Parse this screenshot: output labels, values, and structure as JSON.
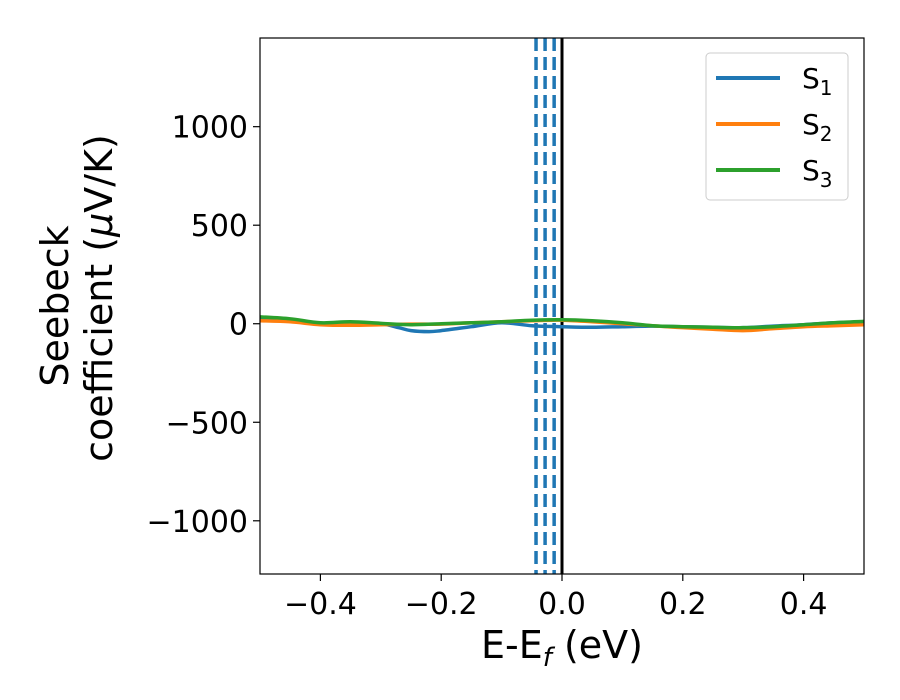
{
  "chart_data": {
    "type": "line",
    "xlabel_main": "E-E",
    "xlabel_sub": "f",
    "xlabel_unit": " (eV)",
    "ylabel_line1": "Seebeck",
    "ylabel_line2_prefix": "coefficient  (",
    "ylabel_mu": "μ",
    "ylabel_line2_suffix": "V/K)",
    "xlim": [
      -0.5,
      0.5
    ],
    "ylim": [
      -1270,
      1450
    ],
    "xticks": [
      {
        "value": -0.4,
        "label": "−0.4"
      },
      {
        "value": -0.2,
        "label": "−0.2"
      },
      {
        "value": 0.0,
        "label": "0.0"
      },
      {
        "value": 0.2,
        "label": "0.2"
      },
      {
        "value": 0.4,
        "label": "0.4"
      }
    ],
    "yticks": [
      {
        "value": -1000,
        "label": "−1000"
      },
      {
        "value": -500,
        "label": "−500"
      },
      {
        "value": 0,
        "label": "0"
      },
      {
        "value": 500,
        "label": "500"
      },
      {
        "value": 1000,
        "label": "1000"
      }
    ],
    "legend_position": "top-right",
    "series": [
      {
        "name": "S",
        "sub": "1",
        "color": "#1f77b4",
        "x": [
          -0.5,
          -0.45,
          -0.4,
          -0.35,
          -0.3,
          -0.27,
          -0.25,
          -0.22,
          -0.2,
          -0.15,
          -0.1,
          -0.05,
          0.0,
          0.05,
          0.1,
          0.15,
          0.2,
          0.25,
          0.3,
          0.35,
          0.4,
          0.45,
          0.5
        ],
        "y": [
          30,
          20,
          0,
          5,
          0,
          -20,
          -35,
          -40,
          -35,
          -15,
          5,
          -10,
          -15,
          -18,
          -15,
          -12,
          -15,
          -18,
          -20,
          -12,
          -5,
          5,
          10
        ]
      },
      {
        "name": "S",
        "sub": "2",
        "color": "#ff7f0e",
        "x": [
          -0.5,
          -0.45,
          -0.4,
          -0.35,
          -0.3,
          -0.25,
          -0.2,
          -0.15,
          -0.1,
          -0.05,
          0.0,
          0.05,
          0.1,
          0.15,
          0.2,
          0.25,
          0.3,
          0.35,
          0.4,
          0.45,
          0.5
        ],
        "y": [
          15,
          10,
          -5,
          -8,
          -5,
          -2,
          -2,
          5,
          10,
          15,
          18,
          10,
          0,
          -10,
          -20,
          -28,
          -35,
          -25,
          -15,
          -10,
          -5
        ]
      },
      {
        "name": "S",
        "sub": "3",
        "color": "#2ca02c",
        "x": [
          -0.5,
          -0.45,
          -0.4,
          -0.35,
          -0.3,
          -0.25,
          -0.2,
          -0.15,
          -0.1,
          -0.05,
          0.0,
          0.05,
          0.1,
          0.15,
          0.2,
          0.25,
          0.3,
          0.35,
          0.4,
          0.45,
          0.5
        ],
        "y": [
          35,
          25,
          5,
          10,
          2,
          -5,
          0,
          5,
          10,
          18,
          20,
          15,
          5,
          -10,
          -15,
          -18,
          -20,
          -15,
          -5,
          5,
          12
        ]
      }
    ],
    "vertical_lines": [
      {
        "x": -0.043,
        "color": "#1f77b4",
        "style": "dashed"
      },
      {
        "x": -0.028,
        "color": "#1f77b4",
        "style": "dashed"
      },
      {
        "x": -0.013,
        "color": "#1f77b4",
        "style": "dashed"
      },
      {
        "x": 0.0,
        "color": "#000000",
        "style": "solid"
      }
    ]
  }
}
